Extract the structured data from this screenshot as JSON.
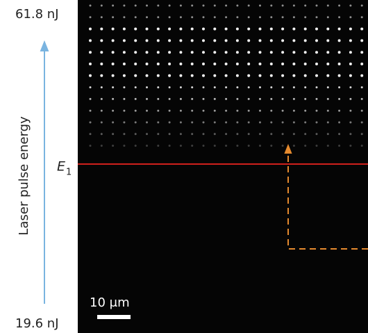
{
  "labels": {
    "top_energy": "61.8 nJ",
    "bottom_energy": "19.6 nJ",
    "axis_label": "Laser pulse energy",
    "threshold": {
      "symbol": "E",
      "subscript": "1"
    },
    "scale_bar": "10 μm"
  }
}
